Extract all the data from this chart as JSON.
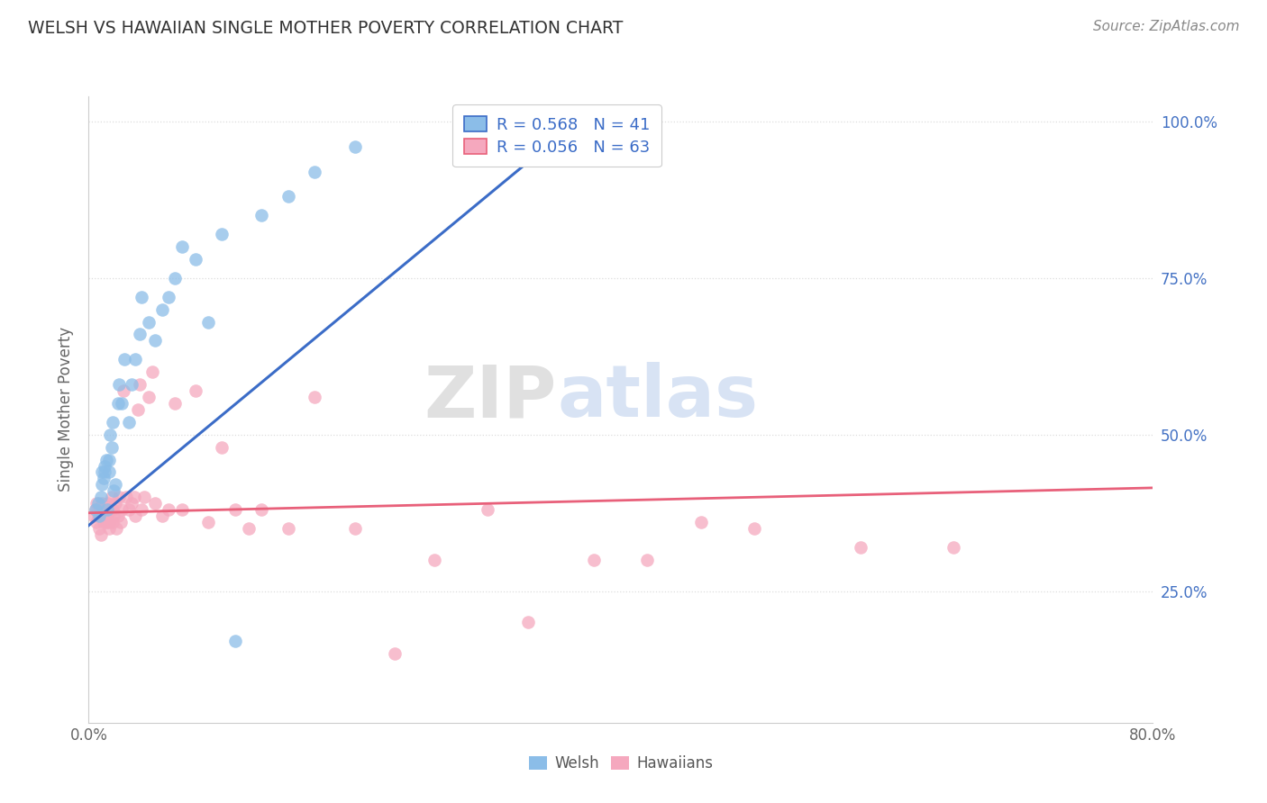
{
  "title": "WELSH VS HAWAIIAN SINGLE MOTHER POVERTY CORRELATION CHART",
  "source": "Source: ZipAtlas.com",
  "ylabel": "Single Mother Poverty",
  "xlim": [
    0.0,
    0.8
  ],
  "ylim": [
    0.04,
    1.04
  ],
  "yticks": [
    0.25,
    0.5,
    0.75,
    1.0
  ],
  "ytick_labels": [
    "25.0%",
    "50.0%",
    "75.0%",
    "100.0%"
  ],
  "welsh_color": "#8BBDE8",
  "hawaiian_color": "#F5A8BE",
  "welsh_line_color": "#3B6CC7",
  "hawaiian_line_color": "#E8607A",
  "welsh_R": 0.568,
  "welsh_N": 41,
  "hawaiian_R": 0.056,
  "hawaiian_N": 63,
  "legend_text_color": "#3B6CC7",
  "background_color": "#FFFFFF",
  "watermark_zip": "ZIP",
  "watermark_atlas": "atlas",
  "title_color": "#333333",
  "source_color": "#888888",
  "ylabel_color": "#666666",
  "grid_color": "#DDDDDD",
  "tick_label_color": "#666666",
  "right_tick_color": "#4472C4",
  "welsh_x": [
    0.005,
    0.007,
    0.008,
    0.009,
    0.01,
    0.01,
    0.011,
    0.012,
    0.012,
    0.013,
    0.014,
    0.015,
    0.015,
    0.016,
    0.017,
    0.018,
    0.019,
    0.02,
    0.022,
    0.023,
    0.025,
    0.027,
    0.03,
    0.032,
    0.035,
    0.038,
    0.04,
    0.045,
    0.05,
    0.055,
    0.06,
    0.065,
    0.07,
    0.08,
    0.09,
    0.1,
    0.11,
    0.13,
    0.15,
    0.17,
    0.2
  ],
  "welsh_y": [
    0.38,
    0.39,
    0.37,
    0.4,
    0.42,
    0.44,
    0.43,
    0.45,
    0.44,
    0.46,
    0.38,
    0.44,
    0.46,
    0.5,
    0.48,
    0.52,
    0.41,
    0.42,
    0.55,
    0.58,
    0.55,
    0.62,
    0.52,
    0.58,
    0.62,
    0.66,
    0.72,
    0.68,
    0.65,
    0.7,
    0.72,
    0.75,
    0.8,
    0.78,
    0.68,
    0.82,
    0.17,
    0.85,
    0.88,
    0.92,
    0.96
  ],
  "hawaiian_x": [
    0.004,
    0.005,
    0.006,
    0.006,
    0.007,
    0.008,
    0.009,
    0.01,
    0.01,
    0.011,
    0.012,
    0.013,
    0.013,
    0.014,
    0.015,
    0.015,
    0.016,
    0.017,
    0.018,
    0.018,
    0.019,
    0.02,
    0.021,
    0.022,
    0.023,
    0.024,
    0.025,
    0.026,
    0.028,
    0.03,
    0.032,
    0.034,
    0.035,
    0.037,
    0.038,
    0.04,
    0.042,
    0.045,
    0.048,
    0.05,
    0.055,
    0.06,
    0.065,
    0.07,
    0.08,
    0.09,
    0.1,
    0.11,
    0.12,
    0.13,
    0.15,
    0.17,
    0.2,
    0.23,
    0.26,
    0.3,
    0.33,
    0.38,
    0.42,
    0.46,
    0.5,
    0.58,
    0.65
  ],
  "hawaiian_y": [
    0.37,
    0.38,
    0.36,
    0.39,
    0.37,
    0.35,
    0.34,
    0.37,
    0.39,
    0.36,
    0.37,
    0.38,
    0.36,
    0.39,
    0.36,
    0.35,
    0.38,
    0.4,
    0.36,
    0.38,
    0.37,
    0.39,
    0.35,
    0.37,
    0.4,
    0.36,
    0.38,
    0.57,
    0.4,
    0.38,
    0.39,
    0.4,
    0.37,
    0.54,
    0.58,
    0.38,
    0.4,
    0.56,
    0.6,
    0.39,
    0.37,
    0.38,
    0.55,
    0.38,
    0.57,
    0.36,
    0.48,
    0.38,
    0.35,
    0.38,
    0.35,
    0.56,
    0.35,
    0.15,
    0.3,
    0.38,
    0.2,
    0.3,
    0.3,
    0.36,
    0.35,
    0.32,
    0.32
  ],
  "blue_line_x0": 0.0,
  "blue_line_y0": 0.355,
  "blue_line_x1": 0.37,
  "blue_line_y1": 1.005,
  "pink_line_x0": 0.0,
  "pink_line_y0": 0.375,
  "pink_line_x1": 0.8,
  "pink_line_y1": 0.415
}
